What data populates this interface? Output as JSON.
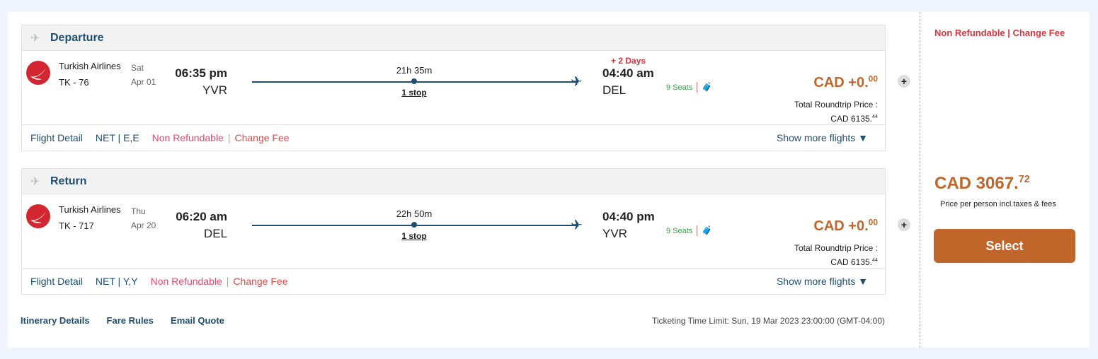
{
  "colors": {
    "accent": "#c0662a",
    "navy": "#1d4f73",
    "red": "#d7343e"
  },
  "segments": [
    {
      "title": "Departure",
      "airline": "Turkish Airlines",
      "flight": "TK - 76",
      "day": "Sat",
      "date": "Apr 01",
      "dep_time": "06:35 pm",
      "dep_code": "YVR",
      "duration": "21h 35m",
      "stops": "1 stop",
      "plus_days": "+ 2 Days",
      "arr_time": "04:40 am",
      "arr_code": "DEL",
      "seats": "9 Seats",
      "price_main": "CAD +0.",
      "price_dec": "00",
      "total_label": "Total Roundtrip Price :",
      "total_main": "CAD 6135.",
      "total_dec": "44",
      "flight_detail": "Flight Detail",
      "fare": "NET | E,E",
      "non_refundable": "Non Refundable",
      "change_fee": "Change Fee",
      "show_more": "Show more flights"
    },
    {
      "title": "Return",
      "airline": "Turkish Airlines",
      "flight": "TK - 717",
      "day": "Thu",
      "date": "Apr 20",
      "dep_time": "06:20 am",
      "dep_code": "DEL",
      "duration": "22h 50m",
      "stops": "1 stop",
      "plus_days": "",
      "arr_time": "04:40 pm",
      "arr_code": "YVR",
      "seats": "9 Seats",
      "price_main": "CAD +0.",
      "price_dec": "00",
      "total_label": "Total Roundtrip Price :",
      "total_main": "CAD 6135.",
      "total_dec": "44",
      "flight_detail": "Flight Detail",
      "fare": "NET | Y,Y",
      "non_refundable": "Non Refundable",
      "change_fee": "Change Fee",
      "show_more": "Show more flights"
    }
  ],
  "links": [
    "Itinerary Details",
    "Fare Rules",
    "Email Quote"
  ],
  "ticketing": "Ticketing Time Limit: Sun, 19 Mar 2023 23:00:00 (GMT-04:00)",
  "side": {
    "policy": "Non Refundable | Change Fee",
    "price_main": "CAD 3067.",
    "price_dec": "72",
    "price_note": "Price per person incl.taxes & fees",
    "select": "Select"
  }
}
